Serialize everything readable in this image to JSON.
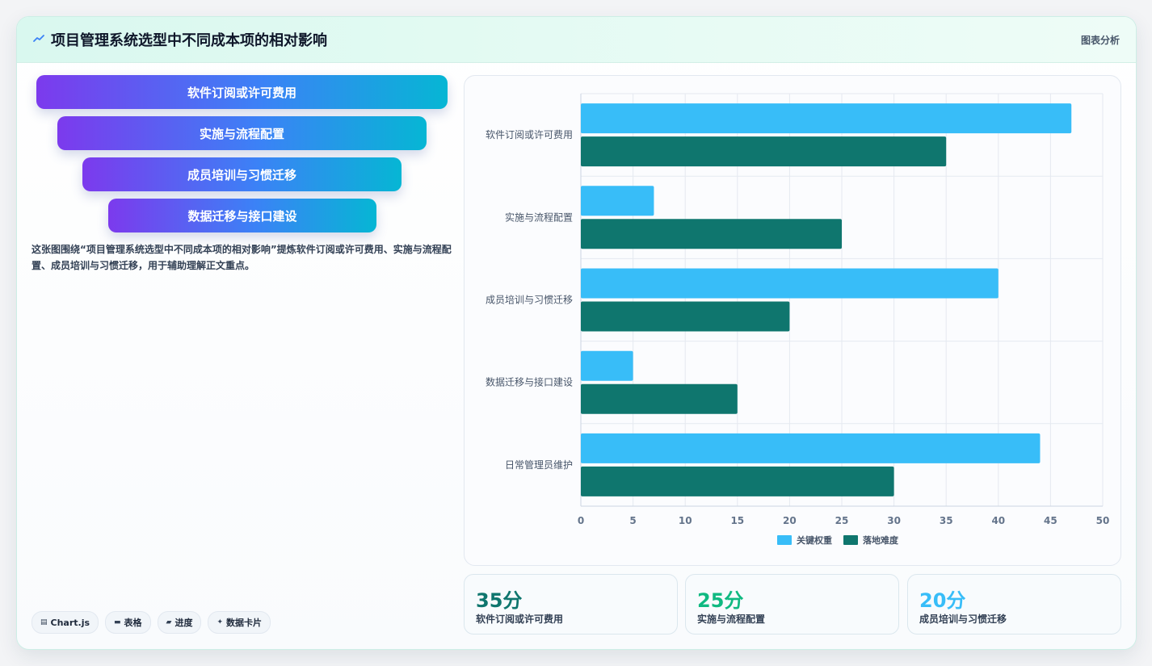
{
  "header": {
    "icon": "chart-line-icon",
    "title": "项目管理系统选型中不同成本项的相对影响",
    "tag": "图表分析"
  },
  "funnel": {
    "items": [
      {
        "label": "软件订阅或许可费用"
      },
      {
        "label": "实施与流程配置"
      },
      {
        "label": "成员培训与习惯迁移"
      },
      {
        "label": "数据迁移与接口建设"
      }
    ]
  },
  "description": "这张图围绕“项目管理系统选型中不同成本项的相对影响”提炼软件订阅或许可费用、实施与流程配置、成员培训与习惯迁移，用于辅助理解正文重点。",
  "chips": [
    {
      "icon": "chart-icon",
      "label": "Chart.js"
    },
    {
      "icon": "table-icon",
      "label": "表格"
    },
    {
      "icon": "progress-icon",
      "label": "进度"
    },
    {
      "icon": "sparkle-icon",
      "label": "数据卡片"
    }
  ],
  "stats": [
    {
      "value": "35分",
      "label": "软件订阅或许可费用",
      "color": "#0f766e"
    },
    {
      "value": "25分",
      "label": "实施与流程配置",
      "color": "#10b981"
    },
    {
      "value": "20分",
      "label": "成员培训与习惯迁移",
      "color": "#38bdf8"
    }
  ],
  "chart_data": {
    "type": "bar",
    "orientation": "horizontal",
    "categories": [
      "软件订阅或许可费用",
      "实施与流程配置",
      "成员培训与习惯迁移",
      "数据迁移与接口建设",
      "日常管理员维护"
    ],
    "series": [
      {
        "name": "关键权重",
        "values": [
          47,
          7,
          40,
          5,
          44
        ],
        "color": "#38bdf8"
      },
      {
        "name": "落地难度",
        "values": [
          35,
          25,
          20,
          15,
          30
        ],
        "color": "#0f766e"
      }
    ],
    "xlim": [
      0,
      50
    ],
    "xticks": [
      0,
      5,
      10,
      15,
      20,
      25,
      30,
      35,
      40,
      45,
      50
    ],
    "grid": true,
    "legend": "bottom"
  }
}
